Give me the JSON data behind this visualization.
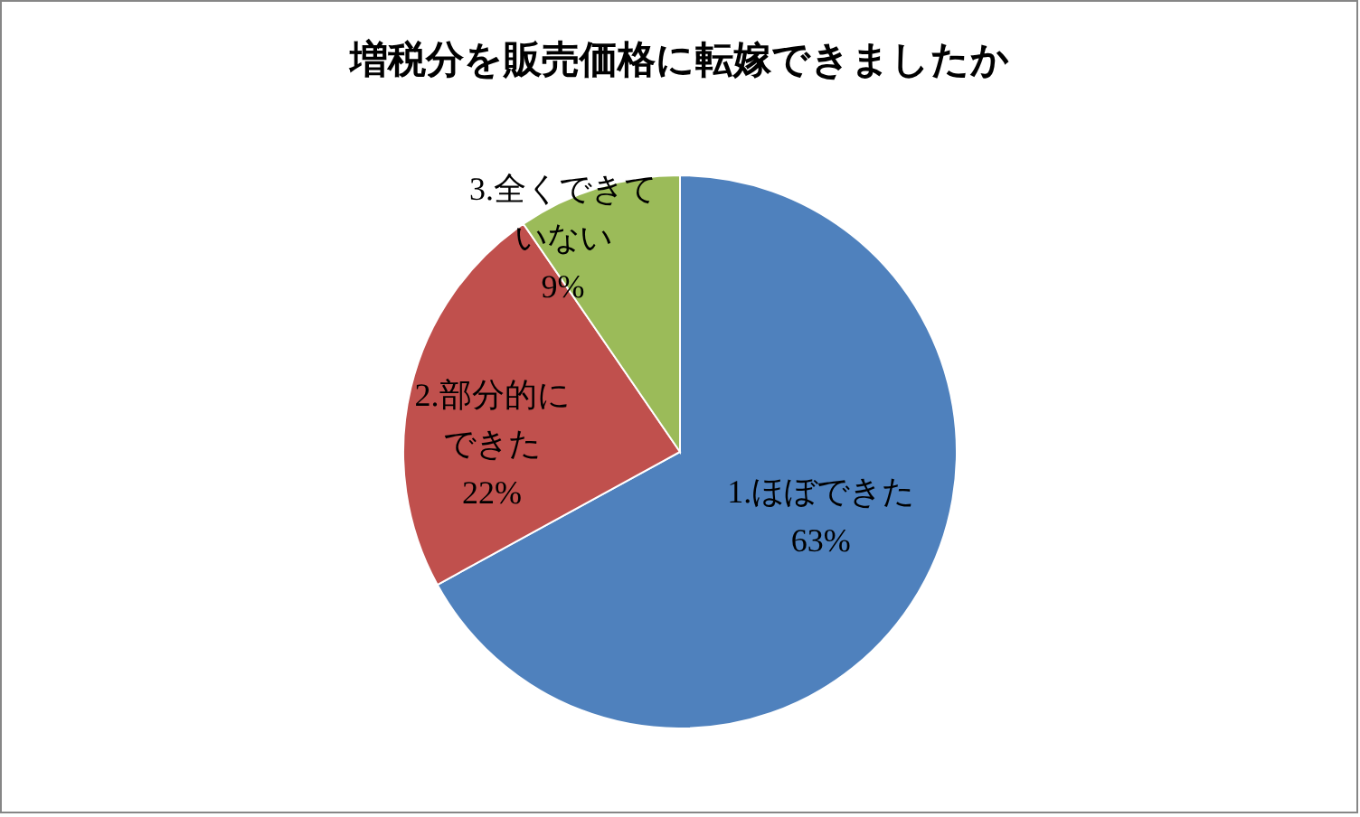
{
  "chart_data": {
    "type": "pie",
    "title": "増税分を販売価格に転嫁できましたか",
    "categories": [
      "1.ほぼできた",
      "2.部分的にできた",
      "3.全くできていない"
    ],
    "values": [
      63,
      22,
      9
    ],
    "colors": [
      "#4f81bd",
      "#c0504d",
      "#9bbb59"
    ],
    "value_labels": [
      "63%",
      "22%",
      "9%"
    ]
  }
}
